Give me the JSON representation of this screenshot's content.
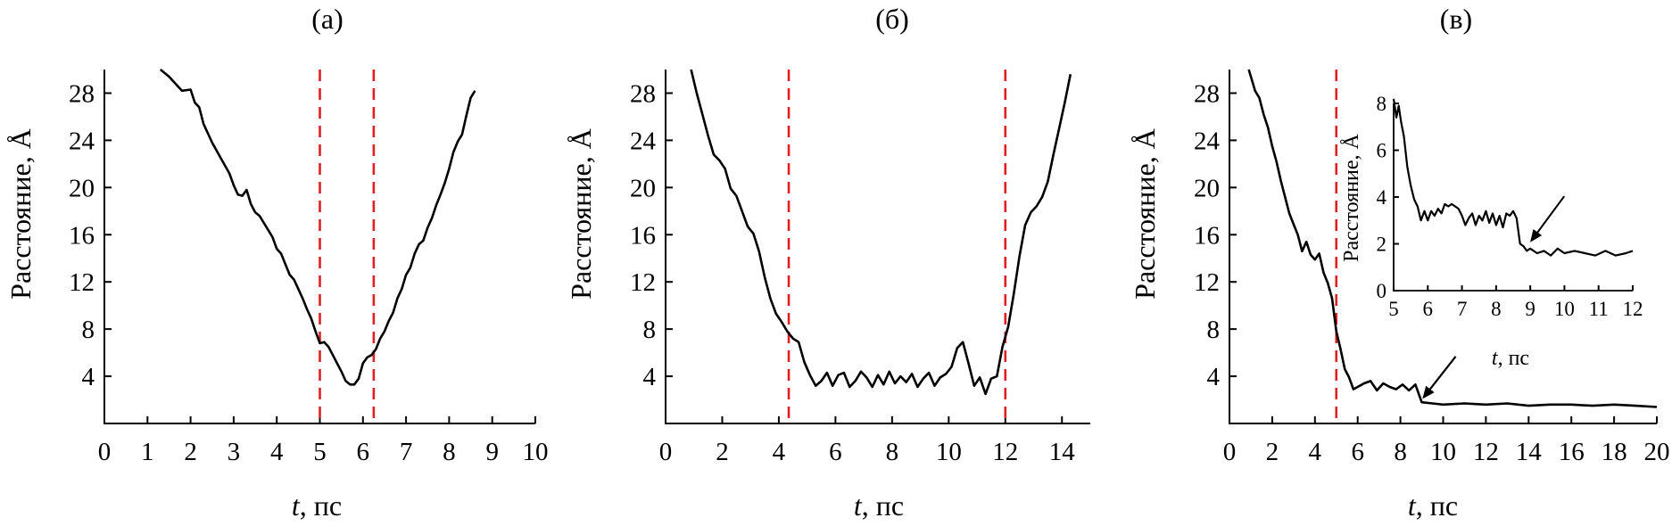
{
  "chart_data": [
    {
      "type": "line",
      "title": "(а)",
      "xlabel_var": "t",
      "xlabel_unit": ", пс",
      "ylabel": "Расстояние, Å",
      "xlim": [
        0,
        10
      ],
      "ylim": [
        0,
        30
      ],
      "xticks": [
        "0",
        "1",
        "2",
        "3",
        "4",
        "5",
        "6",
        "7",
        "8",
        "9",
        "10"
      ],
      "yticks": [
        "4",
        "8",
        "12",
        "16",
        "20",
        "24",
        "28"
      ],
      "grid": false,
      "markers": [
        5.0,
        6.25
      ],
      "series": [
        {
          "x": [
            1.3,
            1.5,
            1.7,
            1.8,
            2.0,
            2.1,
            2.2,
            2.3,
            2.5,
            2.7,
            2.9,
            3.0,
            3.1,
            3.2,
            3.3,
            3.4,
            3.5,
            3.6,
            3.7,
            3.9,
            4.0,
            4.1,
            4.3,
            4.4,
            4.6,
            4.7,
            4.8,
            4.9,
            5.0,
            5.1,
            5.2,
            5.3,
            5.4,
            5.5,
            5.6,
            5.7,
            5.8,
            5.9,
            6.0,
            6.1,
            6.2,
            6.3,
            6.4,
            6.5,
            6.6,
            6.7,
            6.8,
            6.9,
            7.0,
            7.1,
            7.2,
            7.3,
            7.4,
            7.5,
            7.6,
            7.7,
            7.8,
            7.9,
            8.0,
            8.1,
            8.2,
            8.3,
            8.4,
            8.5,
            8.6
          ],
          "y": [
            30.0,
            29.4,
            28.6,
            28.2,
            28.3,
            27.2,
            26.8,
            25.4,
            23.8,
            22.5,
            21.2,
            20.2,
            19.4,
            19.3,
            19.8,
            18.6,
            17.9,
            17.6,
            17.0,
            15.8,
            14.8,
            14.4,
            12.6,
            12.2,
            10.6,
            9.7,
            8.9,
            7.8,
            6.8,
            6.9,
            6.5,
            5.8,
            5.1,
            4.4,
            3.6,
            3.3,
            3.3,
            3.8,
            5.1,
            5.6,
            5.8,
            6.3,
            7.2,
            7.8,
            8.7,
            9.4,
            10.6,
            11.4,
            12.6,
            13.2,
            14.4,
            15.2,
            15.5,
            16.6,
            17.4,
            18.5,
            19.4,
            20.4,
            21.6,
            23.0,
            23.9,
            24.5,
            26.1,
            27.6,
            28.2
          ]
        }
      ]
    },
    {
      "type": "line",
      "title": "(б)",
      "xlabel_var": "t",
      "xlabel_unit": ", пс",
      "ylabel": "Расстояние, Å",
      "xlim": [
        0,
        15
      ],
      "ylim": [
        0,
        30
      ],
      "xticks": [
        "0",
        "2",
        "4",
        "6",
        "8",
        "10",
        "12",
        "14"
      ],
      "yticks": [
        "4",
        "8",
        "12",
        "16",
        "20",
        "24",
        "28"
      ],
      "grid": false,
      "markers": [
        4.35,
        12.0
      ],
      "series": [
        {
          "x": [
            0.9,
            1.1,
            1.3,
            1.5,
            1.7,
            1.9,
            2.1,
            2.3,
            2.5,
            2.7,
            2.9,
            3.1,
            3.3,
            3.5,
            3.7,
            3.9,
            4.1,
            4.3,
            4.5,
            4.7,
            4.9,
            5.1,
            5.3,
            5.5,
            5.7,
            5.9,
            6.1,
            6.3,
            6.5,
            6.7,
            6.9,
            7.1,
            7.3,
            7.5,
            7.7,
            7.9,
            8.1,
            8.3,
            8.5,
            8.7,
            8.9,
            9.1,
            9.3,
            9.5,
            9.7,
            9.9,
            10.1,
            10.3,
            10.5,
            10.7,
            10.9,
            11.1,
            11.3,
            11.5,
            11.7,
            11.9,
            12.1,
            12.3,
            12.5,
            12.7,
            12.9,
            13.1,
            13.3,
            13.5,
            13.7,
            13.9,
            14.1,
            14.3
          ],
          "y": [
            30.0,
            28.0,
            26.2,
            24.4,
            22.8,
            22.3,
            21.6,
            19.9,
            19.3,
            18.0,
            16.7,
            16.1,
            14.6,
            12.4,
            10.6,
            9.3,
            8.6,
            7.8,
            7.2,
            6.9,
            5.2,
            4.1,
            3.2,
            3.6,
            4.3,
            3.2,
            4.1,
            4.3,
            3.1,
            3.6,
            4.4,
            3.9,
            3.1,
            4.1,
            3.3,
            4.4,
            3.4,
            4.0,
            3.5,
            4.2,
            3.1,
            3.8,
            4.3,
            3.2,
            3.9,
            4.2,
            4.8,
            6.4,
            6.9,
            5.1,
            3.2,
            3.9,
            2.5,
            3.8,
            4.0,
            6.5,
            8.2,
            11.0,
            14.2,
            16.8,
            17.9,
            18.4,
            19.2,
            20.5,
            22.8,
            25.0,
            27.2,
            29.6
          ]
        }
      ]
    },
    {
      "type": "line",
      "title": "(в)",
      "xlabel_var": "t",
      "xlabel_unit": ", пс",
      "ylabel": "Расстояние, Å",
      "xlim": [
        0,
        20
      ],
      "ylim": [
        0,
        30
      ],
      "xticks": [
        "0",
        "2",
        "4",
        "6",
        "8",
        "10",
        "12",
        "14",
        "16",
        "18",
        "20"
      ],
      "yticks": [
        "4",
        "8",
        "12",
        "16",
        "20",
        "24",
        "28"
      ],
      "grid": false,
      "markers": [
        5.0
      ],
      "series": [
        {
          "x": [
            0.9,
            1.0,
            1.2,
            1.4,
            1.6,
            1.8,
            2.0,
            2.2,
            2.4,
            2.6,
            2.8,
            3.0,
            3.2,
            3.4,
            3.6,
            3.8,
            4.0,
            4.2,
            4.4,
            4.6,
            4.8,
            5.0,
            5.2,
            5.4,
            5.6,
            5.8,
            6.0,
            6.3,
            6.6,
            6.9,
            7.2,
            7.5,
            7.8,
            8.1,
            8.4,
            8.7,
            9.0,
            9.5,
            10.0,
            11.0,
            12.0,
            13.0,
            14.0,
            15.0,
            16.0,
            17.0,
            18.0,
            19.0,
            20.0
          ],
          "y": [
            30.0,
            29.4,
            28.2,
            27.6,
            26.2,
            25.1,
            23.5,
            22.2,
            20.6,
            19.2,
            17.8,
            16.9,
            16.0,
            14.6,
            15.4,
            14.3,
            13.9,
            14.4,
            12.8,
            11.9,
            10.6,
            7.8,
            6.3,
            4.6,
            3.9,
            2.9,
            3.1,
            3.4,
            3.6,
            2.8,
            3.4,
            3.1,
            2.9,
            3.3,
            2.8,
            3.3,
            1.8,
            1.7,
            1.6,
            1.7,
            1.6,
            1.7,
            1.5,
            1.6,
            1.6,
            1.5,
            1.6,
            1.5,
            1.4
          ]
        }
      ],
      "inset": {
        "xlabel_var": "t",
        "xlabel_unit": ", пс",
        "ylabel": "Расстояние, Å",
        "xlim": [
          5,
          12
        ],
        "ylim": [
          0,
          8
        ],
        "xticks": [
          "5",
          "6",
          "7",
          "8",
          "9",
          "10",
          "11",
          "12"
        ],
        "yticks": [
          "0",
          "2",
          "4",
          "6",
          "8"
        ],
        "series": [
          {
            "x": [
              5.0,
              5.08,
              5.15,
              5.22,
              5.3,
              5.4,
              5.5,
              5.6,
              5.7,
              5.8,
              5.9,
              6.0,
              6.1,
              6.2,
              6.3,
              6.4,
              6.5,
              6.6,
              6.7,
              6.8,
              6.9,
              7.0,
              7.1,
              7.2,
              7.3,
              7.4,
              7.5,
              7.6,
              7.7,
              7.8,
              7.9,
              8.0,
              8.1,
              8.2,
              8.3,
              8.4,
              8.5,
              8.6,
              8.7,
              8.8,
              8.9,
              9.0,
              9.2,
              9.4,
              9.6,
              9.8,
              10.0,
              10.3,
              10.6,
              10.9,
              11.2,
              11.5,
              11.8,
              12.0
            ],
            "y": [
              8.2,
              7.4,
              7.9,
              7.2,
              6.6,
              5.3,
              4.5,
              3.9,
              3.6,
              3.0,
              3.4,
              3.0,
              3.4,
              3.2,
              3.5,
              3.3,
              3.7,
              3.6,
              3.7,
              3.6,
              3.5,
              3.2,
              2.8,
              3.1,
              3.3,
              2.8,
              3.2,
              3.0,
              3.4,
              2.9,
              3.3,
              2.8,
              3.2,
              2.7,
              3.3,
              3.2,
              3.4,
              3.1,
              2.0,
              1.9,
              1.7,
              1.8,
              1.6,
              1.7,
              1.5,
              1.8,
              1.6,
              1.7,
              1.6,
              1.5,
              1.7,
              1.5,
              1.6,
              1.7
            ]
          }
        ],
        "arrow_target": [
          8.95,
          1.9
        ]
      },
      "arrow_target": [
        9.0,
        1.9
      ]
    }
  ]
}
